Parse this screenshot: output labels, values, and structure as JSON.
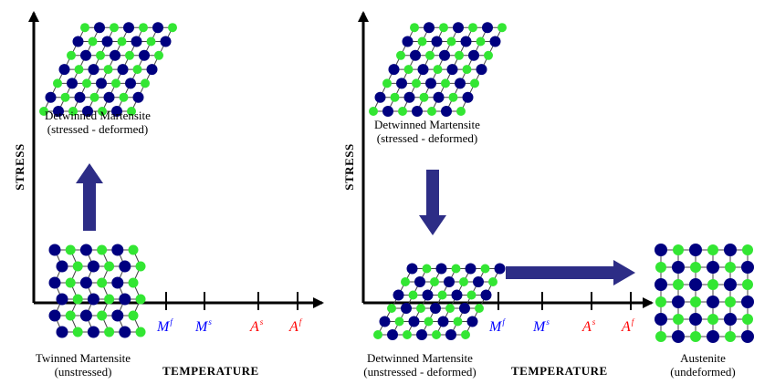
{
  "colors": {
    "atom_dark": "#000080",
    "atom_green": "#33e633",
    "arrow_fill": "#2d2d86",
    "tick_blue": "#0000ff",
    "tick_red": "#ff0000"
  },
  "left_panel": {
    "y_axis_title": "STRESS",
    "x_axis_title": "TEMPERATURE",
    "top_state": {
      "line1": "Detwinned Martensite",
      "line2": "(stressed - deformed)"
    },
    "bottom_state": {
      "line1": "Twinned Martensite",
      "line2": "(unstressed)"
    },
    "ticks": [
      {
        "base": "M",
        "sup": "f",
        "color": "blue"
      },
      {
        "base": "M",
        "sup": "s",
        "color": "blue"
      },
      {
        "base": "A",
        "sup": "s",
        "color": "red"
      },
      {
        "base": "A",
        "sup": "f",
        "color": "red"
      }
    ]
  },
  "right_panel": {
    "y_axis_title": "STRESS",
    "x_axis_title": "TEMPERATURE",
    "top_state": {
      "line1": "Detwinned Martensite",
      "line2": "(stressed - deformed)"
    },
    "bottom_state": {
      "line1": "Detwinned Martensite",
      "line2": "(unstressed - deformed)"
    },
    "end_state": {
      "line1": "Austenite",
      "line2": "(undeformed)"
    },
    "ticks": [
      {
        "base": "M",
        "sup": "f",
        "color": "blue"
      },
      {
        "base": "M",
        "sup": "s",
        "color": "blue"
      },
      {
        "base": "A",
        "sup": "s",
        "color": "red"
      },
      {
        "base": "A",
        "sup": "f",
        "color": "red"
      }
    ]
  }
}
